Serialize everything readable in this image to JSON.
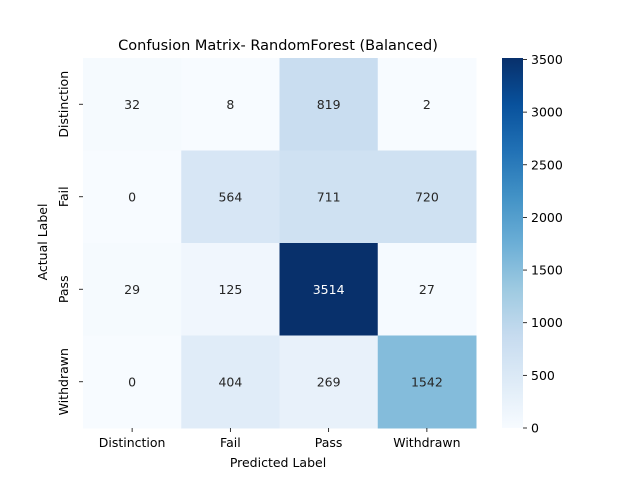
{
  "chart_data": {
    "type": "heatmap",
    "title": "Confusion Matrix- RandomForest (Balanced)",
    "xlabel": "Predicted Label",
    "ylabel": "Actual Label",
    "x_categories": [
      "Distinction",
      "Fail",
      "Pass",
      "Withdrawn"
    ],
    "y_categories": [
      "Distinction",
      "Fail",
      "Pass",
      "Withdrawn"
    ],
    "values": [
      [
        32,
        8,
        819,
        2
      ],
      [
        0,
        564,
        711,
        720
      ],
      [
        29,
        125,
        3514,
        27
      ],
      [
        0,
        404,
        269,
        1542
      ]
    ],
    "colormap": "Blues",
    "vmin": 0,
    "vmax": 3514,
    "colorbar_ticks": [
      0,
      500,
      1000,
      1500,
      2000,
      2500,
      3000,
      3500
    ],
    "grid": false
  }
}
